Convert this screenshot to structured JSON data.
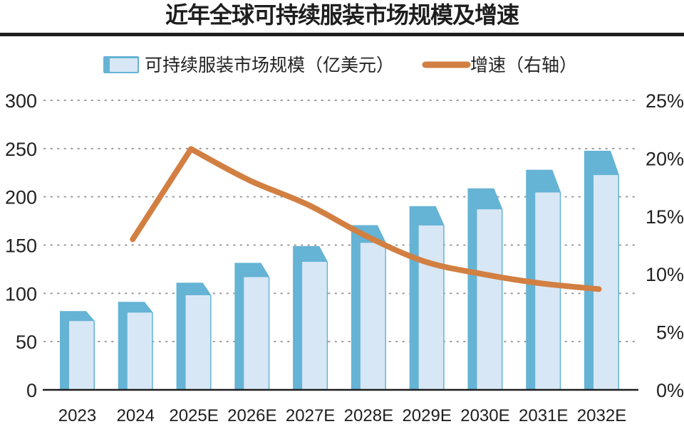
{
  "chart_data": {
    "type": "bar",
    "title": "近年全球可持续服装市场规模及增速",
    "categories": [
      "2023",
      "2024",
      "2025E",
      "2026E",
      "2027E",
      "2028E",
      "2029E",
      "2030E",
      "2031E",
      "2032E"
    ],
    "series": [
      {
        "name": "可持续服装市场规模（亿美元）",
        "type": "bar",
        "axis": "left",
        "color": "#65b3d5",
        "face_color": "#d8e7f5",
        "values": [
          81.6,
          91.2,
          111,
          131.6,
          149,
          170.6,
          190.4,
          208.8,
          228,
          247.8
        ]
      },
      {
        "name": "增速（右轴）",
        "type": "line",
        "axis": "right",
        "color": "#d27f42",
        "values": [
          null,
          13.0,
          20.8,
          18.1,
          16.0,
          13.3,
          11.1,
          10.0,
          9.2,
          8.7
        ]
      }
    ],
    "left_axis": {
      "ylim": [
        0,
        300
      ],
      "ticks": [
        "0",
        "50",
        "100",
        "150",
        "200",
        "250",
        "300"
      ],
      "tick_values": [
        0,
        50,
        100,
        150,
        200,
        250,
        300
      ]
    },
    "right_axis": {
      "ylim": [
        0,
        25
      ],
      "ticks": [
        "0%",
        "5%",
        "10%",
        "15%",
        "20%",
        "25%"
      ],
      "tick_values": [
        0,
        5,
        10,
        15,
        20,
        25
      ]
    },
    "legend": {
      "bar_label": "可持续服装市场规模（亿美元）",
      "line_label": "增速（右轴）",
      "placement": "top"
    },
    "grid": true,
    "xlabel": "",
    "ylabel": ""
  }
}
